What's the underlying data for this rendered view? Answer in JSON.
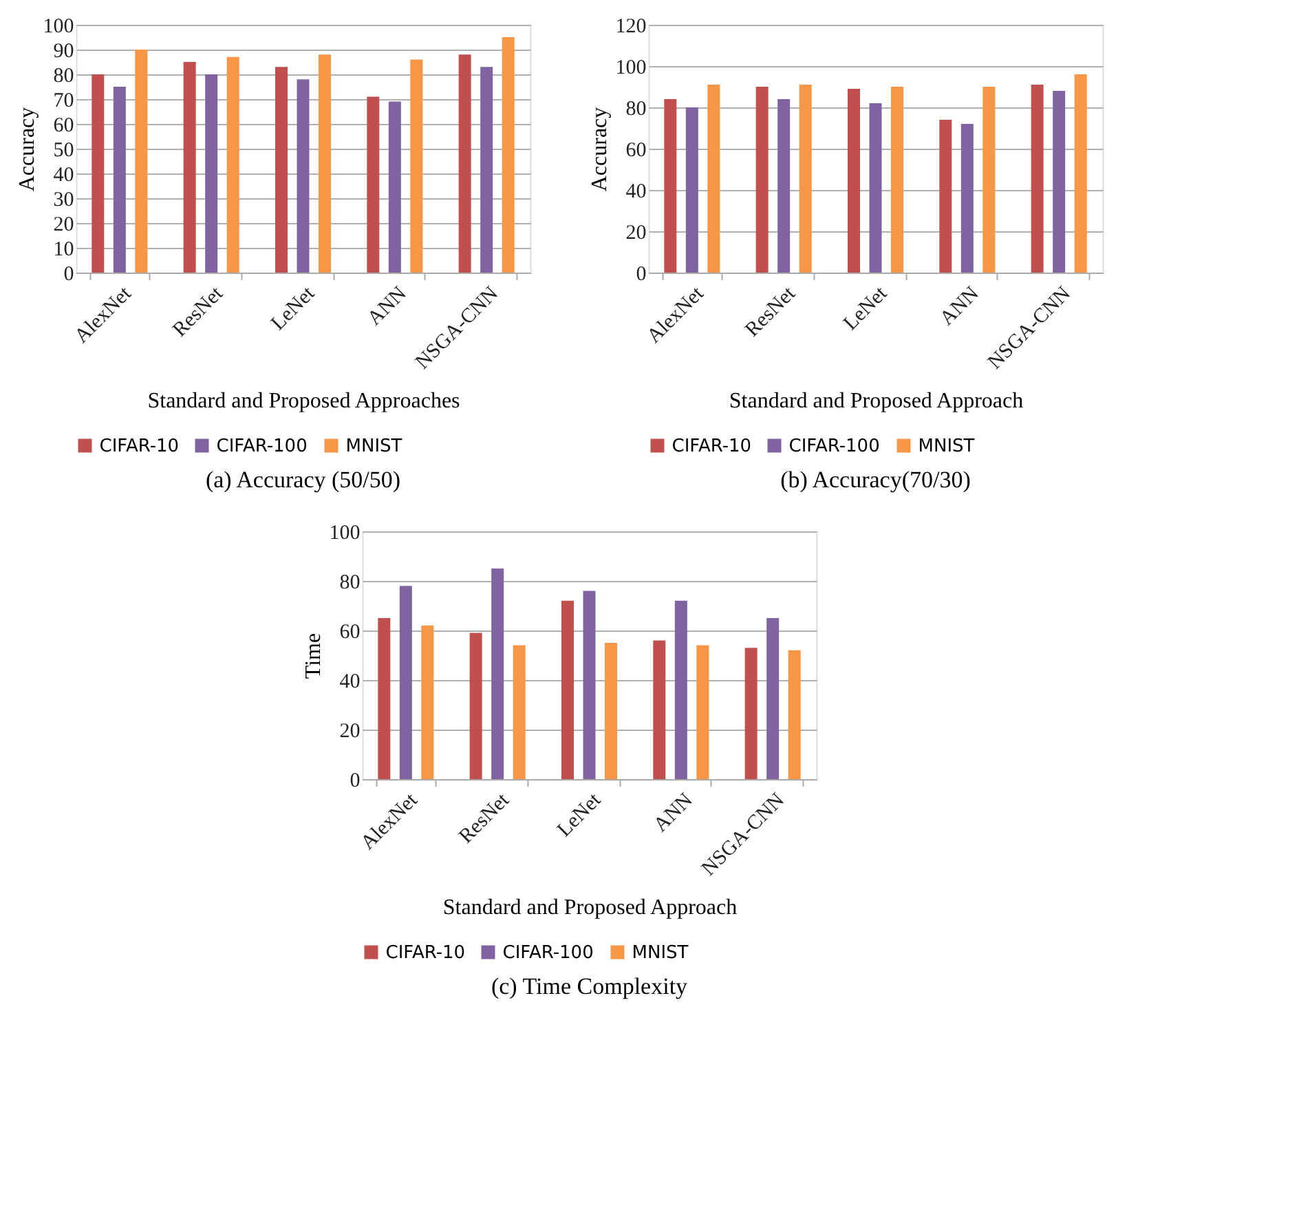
{
  "chart_data": [
    {
      "type": "bar",
      "title": "(a)  Accuracy (50/50)",
      "xlabel": "Standard and Proposed Approaches",
      "ylabel": "Accuracy",
      "categories": [
        "AlexNet",
        "ResNet",
        "LeNet",
        "ANN",
        "NSGA-CNN"
      ],
      "series": [
        {
          "name": "CIFAR-10",
          "color": "#c0504d",
          "values": [
            80,
            85,
            83,
            71,
            88
          ]
        },
        {
          "name": "CIFAR-100",
          "color": "#8064a2",
          "values": [
            75,
            80,
            78,
            69,
            83
          ]
        },
        {
          "name": "MNIST",
          "color": "#f79646",
          "values": [
            90,
            87,
            88,
            86,
            95
          ]
        }
      ],
      "ylim": [
        0,
        100
      ],
      "yticks": [
        0,
        10,
        20,
        30,
        40,
        50,
        60,
        70,
        80,
        90,
        100
      ],
      "grid": "y",
      "legend": "bottom"
    },
    {
      "type": "bar",
      "title": "(b) Accuracy(70/30)",
      "xlabel": "Standard and Proposed Approach",
      "ylabel": "Accuracy",
      "categories": [
        "AlexNet",
        "ResNet",
        "LeNet",
        "ANN",
        "NSGA-CNN"
      ],
      "series": [
        {
          "name": "CIFAR-10",
          "color": "#c0504d",
          "values": [
            84,
            90,
            89,
            74,
            91
          ]
        },
        {
          "name": "CIFAR-100",
          "color": "#8064a2",
          "values": [
            80,
            84,
            82,
            72,
            88
          ]
        },
        {
          "name": "MNIST",
          "color": "#f79646",
          "values": [
            91,
            91,
            90,
            90,
            96
          ]
        }
      ],
      "ylim": [
        0,
        120
      ],
      "yticks": [
        0,
        20,
        40,
        60,
        80,
        100,
        120
      ],
      "grid": "y",
      "legend": "bottom"
    },
    {
      "type": "bar",
      "title": "(c) Time Complexity",
      "xlabel": "Standard and Proposed Approach",
      "ylabel": "Time",
      "categories": [
        "AlexNet",
        "ResNet",
        "LeNet",
        "ANN",
        "NSGA-CNN"
      ],
      "series": [
        {
          "name": "CIFAR-10",
          "color": "#c0504d",
          "values": [
            65,
            59,
            72,
            56,
            53
          ]
        },
        {
          "name": "CIFAR-100",
          "color": "#8064a2",
          "values": [
            78,
            85,
            76,
            72,
            65
          ]
        },
        {
          "name": "MNIST",
          "color": "#f79646",
          "values": [
            62,
            54,
            55,
            54,
            52
          ]
        }
      ],
      "ylim": [
        0,
        100
      ],
      "yticks": [
        0,
        20,
        40,
        60,
        80,
        100
      ],
      "grid": "y",
      "legend": "bottom"
    }
  ]
}
